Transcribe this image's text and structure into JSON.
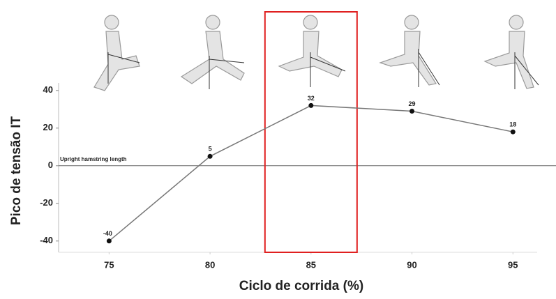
{
  "chart_data": {
    "type": "line",
    "x_label": "Ciclo de corrida (%)",
    "y_label": "Pico de tensão IT",
    "annotation": "Upright hamstring length",
    "x": [
      75,
      80,
      85,
      90,
      95
    ],
    "series": [
      {
        "name": "Pico de tensão IT",
        "color": "#777777",
        "values": [
          -40,
          5,
          32,
          29,
          18
        ]
      }
    ],
    "xlim": [
      72.5,
      96.2
    ],
    "xticks": [
      75,
      80,
      85,
      90,
      95
    ],
    "ylim": [
      -46,
      44
    ],
    "yticks": [
      40,
      20,
      0,
      -20,
      -40
    ],
    "highlight_x": 85,
    "highlight_color": "#e02020"
  }
}
